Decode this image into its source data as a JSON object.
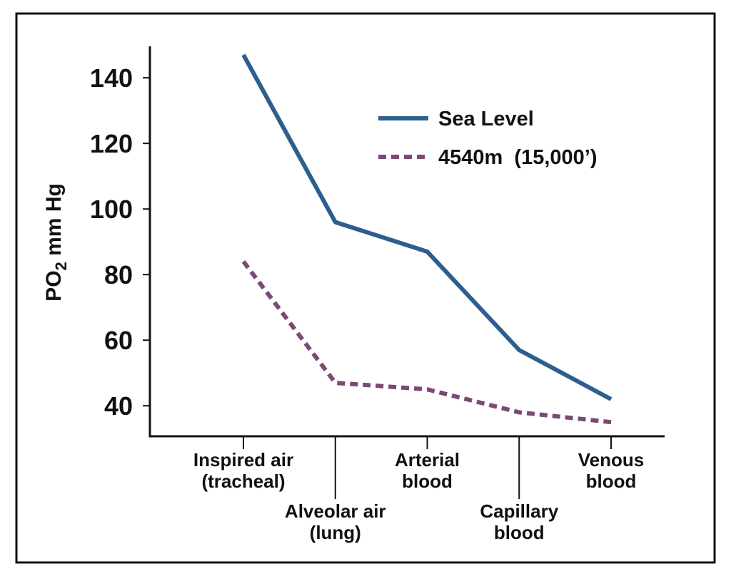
{
  "chart_data": {
    "type": "line",
    "y_label": [
      "PO",
      "2",
      " mm Hg"
    ],
    "categories": [
      "Inspired air\n(tracheal)",
      "Alveolar air\n(lung)",
      "Arterial\nblood",
      "Capillary\nblood",
      "Venous\nblood"
    ],
    "series": [
      {
        "name": "Sea Level",
        "color": "#2d5e8e",
        "dash": "solid",
        "values": [
          147,
          96,
          87,
          57,
          42
        ]
      },
      {
        "name": "4540m  (15,000’)",
        "color": "#7b4a74",
        "dash": "dotted",
        "values": [
          84,
          47,
          45,
          38,
          35
        ]
      }
    ],
    "ylim": [
      30.7,
      149.6
    ],
    "yticks": [
      40,
      60,
      80,
      100,
      120,
      140
    ],
    "grid": false
  }
}
